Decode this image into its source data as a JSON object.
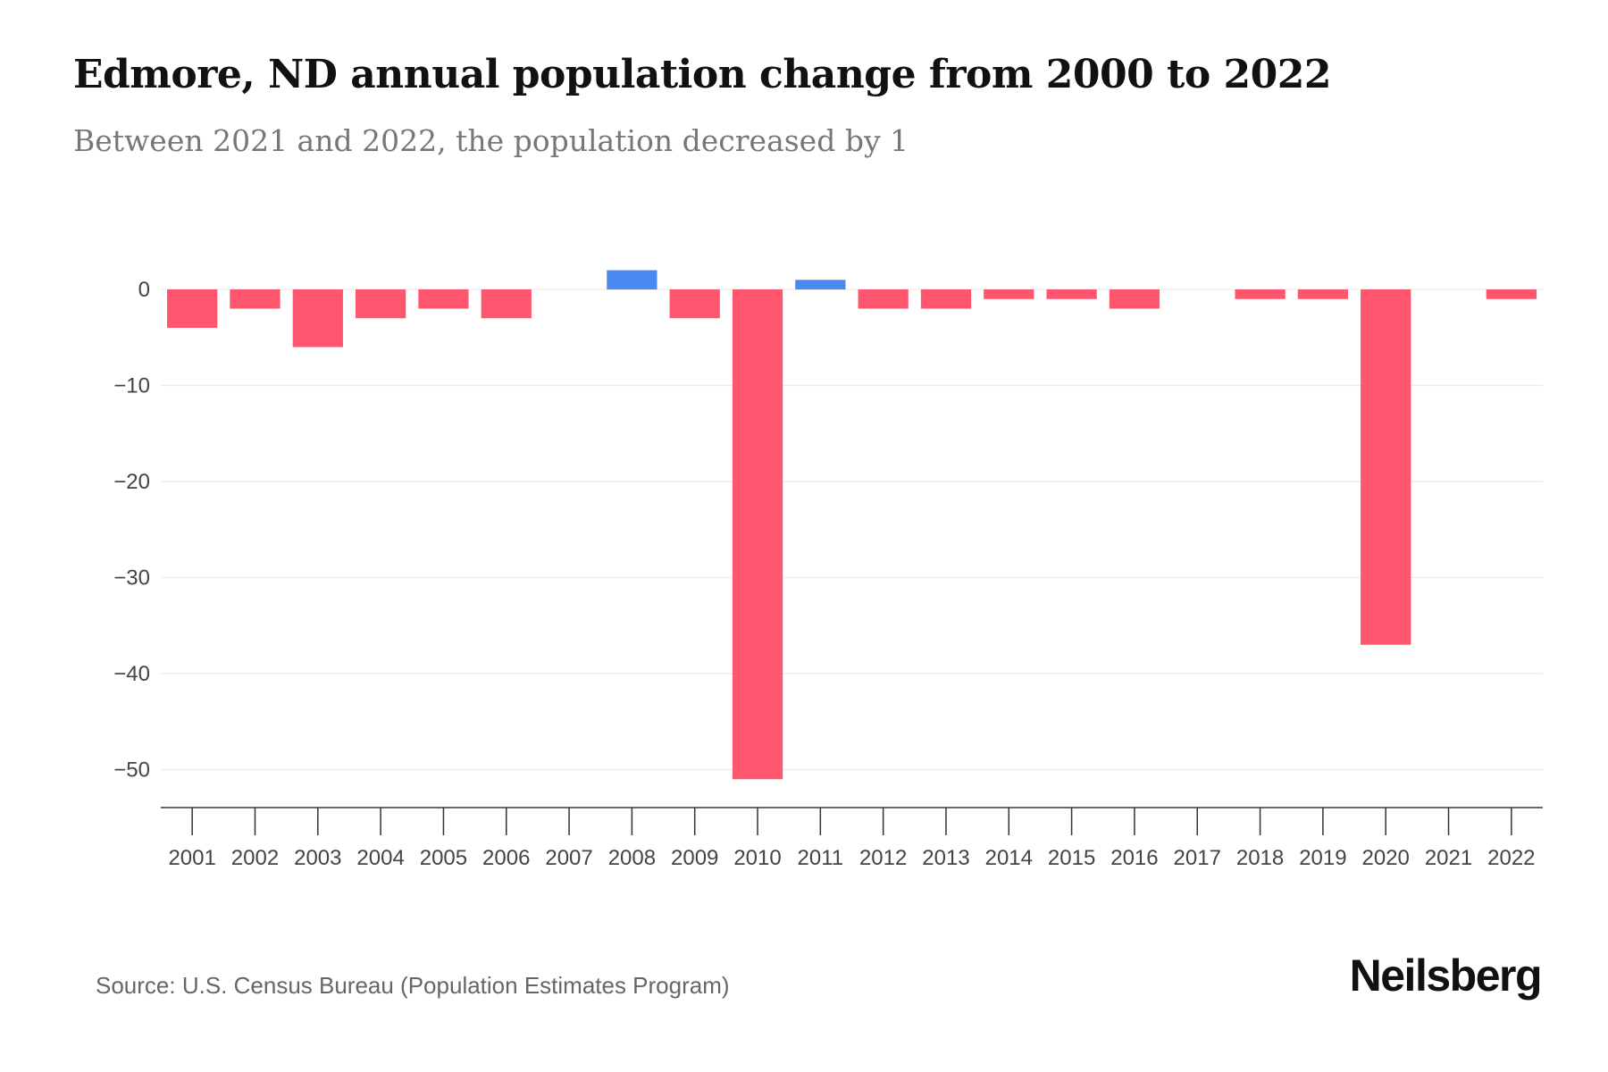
{
  "chart_data": {
    "type": "bar",
    "title": "Edmore, ND annual population change from 2000 to 2022",
    "subtitle": "Between 2021 and 2022, the population decreased by 1",
    "categories": [
      "2001",
      "2002",
      "2003",
      "2004",
      "2005",
      "2006",
      "2007",
      "2008",
      "2009",
      "2010",
      "2011",
      "2012",
      "2013",
      "2014",
      "2015",
      "2016",
      "2017",
      "2018",
      "2019",
      "2020",
      "2021",
      "2022"
    ],
    "values": [
      -4,
      -2,
      -6,
      -3,
      -2,
      -3,
      0,
      2,
      -3,
      -51,
      1,
      -2,
      -2,
      -1,
      -1,
      -2,
      0,
      -1,
      -1,
      -37,
      0,
      -1
    ],
    "yticks": [
      0,
      -10,
      -20,
      -30,
      -40,
      -50
    ],
    "ytick_labels": [
      "0",
      "−10",
      "−20",
      "−30",
      "−40",
      "−50"
    ],
    "ylim": [
      -54,
      2
    ],
    "xlabel": "",
    "ylabel": "",
    "grid": true,
    "colors": {
      "positive": "#4a89f0",
      "negative": "#fe566e",
      "grid": "#ebebeb",
      "axis": "#333333",
      "tick_text": "#444444"
    }
  },
  "footer": {
    "source": "Source: U.S. Census Bureau (Population Estimates Program)",
    "brand": "Neilsberg"
  }
}
